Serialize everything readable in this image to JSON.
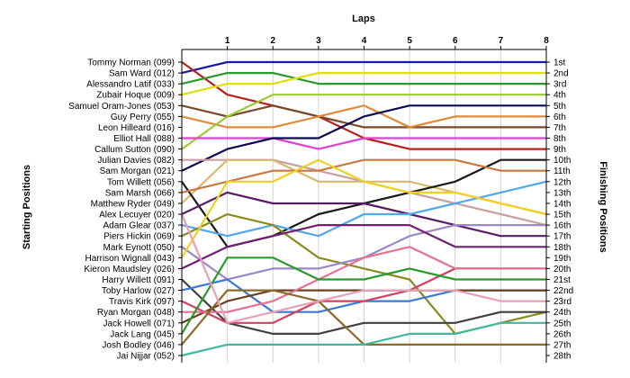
{
  "chart_data": {
    "type": "line",
    "title": "Laps",
    "xlabel": "Laps",
    "ylabel_left": "Starting Positions",
    "ylabel_right": "Finishing Positions",
    "x": [
      0,
      1,
      2,
      3,
      4,
      5,
      6,
      7,
      8
    ],
    "x_ticks": [
      "1",
      "2",
      "3",
      "4",
      "5",
      "6",
      "7",
      "8"
    ],
    "xlim": [
      0,
      8
    ],
    "ylim": [
      1,
      28
    ],
    "y_inverted": true,
    "grid": "vertical",
    "start_labels": [
      "Tommy Norman (099)",
      "Sam Ward (012)",
      "Alessandro Latif (033)",
      "Zubair Hoque (009)",
      "Samuel Oram-Jones (053)",
      "Guy Perry (055)",
      "Leon Hilleard (016)",
      "Elliot Hall (088)",
      "Callum Sutton (090)",
      "Julian Davies (082)",
      "Sam Morgan (021)",
      "Tom Willett (056)",
      "Sam Marsh (066)",
      "Matthew Ryder (049)",
      "Alex Lecuyer (020)",
      "Adam Glear (037)",
      "Piers Hickin (069)",
      "Mark Eynott (050)",
      "Harrison Wignall (043)",
      "Kieron Maudsley (026)",
      "Harry Willett (091)",
      "Toby Harlow (027)",
      "Travis Kirk (097)",
      "Ryan Morgan (048)",
      "Jack Howell (071)",
      "Jack Lang (045)",
      "Josh Bodley (046)",
      "Jai Nijjar (052)"
    ],
    "finish_labels": [
      "1st",
      "2nd",
      "3rd",
      "4th",
      "5th",
      "6th",
      "7th",
      "8th",
      "9th",
      "10th",
      "11th",
      "12th",
      "13th",
      "14th",
      "15th",
      "16th",
      "17th",
      "18th",
      "19th",
      "20th",
      "21st",
      "22nd",
      "23rd",
      "24th",
      "25th",
      "26th",
      "27th",
      "28th"
    ],
    "series": [
      {
        "color": "#1a1aa8",
        "values": [
          2,
          1,
          1,
          1,
          1,
          1,
          1,
          1,
          1
        ]
      },
      {
        "color": "#b82020",
        "values": [
          1,
          4,
          5,
          6,
          8,
          9,
          9,
          9,
          9
        ]
      },
      {
        "color": "#2a9a2a",
        "values": [
          3,
          2,
          2,
          3,
          3,
          3,
          3,
          3,
          3
        ]
      },
      {
        "color": "#e0e000",
        "values": [
          4,
          3,
          3,
          2,
          2,
          2,
          2,
          2,
          2
        ]
      },
      {
        "color": "#7a4a2a",
        "values": [
          5,
          6,
          5,
          6,
          7,
          7,
          7,
          7,
          7
        ]
      },
      {
        "color": "#e08a3a",
        "values": [
          6,
          7,
          7,
          6,
          5,
          7,
          6,
          6,
          6
        ]
      },
      {
        "color": "#9acd32",
        "values": [
          9,
          6,
          4,
          4,
          4,
          4,
          4,
          4,
          4
        ]
      },
      {
        "color": "#e040d0",
        "values": [
          8,
          8,
          8,
          9,
          8,
          8,
          8,
          8,
          8
        ]
      },
      {
        "color": "#0a0a50",
        "values": [
          11,
          9,
          8,
          8,
          6,
          5,
          5,
          5,
          5
        ]
      },
      {
        "color": "#c8a0a0",
        "values": [
          10,
          10,
          10,
          11,
          12,
          13,
          14,
          15,
          16
        ]
      },
      {
        "color": "#d8b870",
        "values": [
          14,
          10,
          10,
          12,
          12,
          12,
          13,
          14,
          15
        ]
      },
      {
        "color": "#1a1a1a",
        "values": [
          12,
          18,
          17,
          15,
          14,
          13,
          12,
          10,
          10
        ]
      },
      {
        "color": "#c87840",
        "values": [
          13,
          12,
          11,
          11,
          10,
          10,
          10,
          11,
          11
        ]
      },
      {
        "color": "#5a1a6a",
        "values": [
          15,
          13,
          14,
          14,
          14,
          15,
          16,
          17,
          17
        ]
      },
      {
        "color": "#50a8e8",
        "values": [
          16,
          17,
          16,
          17,
          15,
          15,
          14,
          13,
          12
        ]
      },
      {
        "color": "#8a8a20",
        "values": [
          17,
          15,
          16,
          19,
          20,
          21,
          26,
          25,
          24
        ]
      },
      {
        "color": "#9a88c8",
        "values": [
          18,
          21,
          20,
          20,
          19,
          17,
          16,
          16,
          16
        ]
      },
      {
        "color": "#702070",
        "values": [
          20,
          18,
          17,
          16,
          16,
          16,
          18,
          18,
          18
        ]
      },
      {
        "color": "#f0d020",
        "values": [
          19,
          12,
          12,
          10,
          12,
          13,
          13,
          14,
          15
        ]
      },
      {
        "color": "#404040",
        "values": [
          21,
          25,
          26,
          26,
          25,
          25,
          25,
          24,
          24
        ]
      },
      {
        "color": "#3a7ad8",
        "values": [
          22,
          21,
          24,
          24,
          23,
          23,
          22,
          22,
          22
        ]
      },
      {
        "color": "#6a4020",
        "values": [
          25,
          23,
          22,
          22,
          22,
          22,
          22,
          22,
          22
        ]
      },
      {
        "color": "#d04060",
        "values": [
          23,
          25,
          25,
          23,
          23,
          22,
          20,
          20,
          20
        ]
      },
      {
        "color": "#e87090",
        "values": [
          24,
          24,
          23,
          21,
          19,
          18,
          20,
          20,
          20
        ]
      },
      {
        "color": "#2a9a2a",
        "values": [
          26,
          19,
          19,
          21,
          21,
          20,
          21,
          21,
          21
        ]
      },
      {
        "color": "#8a6a28",
        "values": [
          27,
          22,
          22,
          23,
          27,
          27,
          27,
          27,
          27
        ]
      },
      {
        "color": "#40b8a0",
        "values": [
          28,
          27,
          27,
          27,
          27,
          26,
          26,
          25,
          25
        ]
      },
      {
        "color": "#e8a0b8",
        "values": [
          15,
          25,
          24,
          23,
          22,
          22,
          22,
          23,
          23
        ]
      }
    ]
  }
}
